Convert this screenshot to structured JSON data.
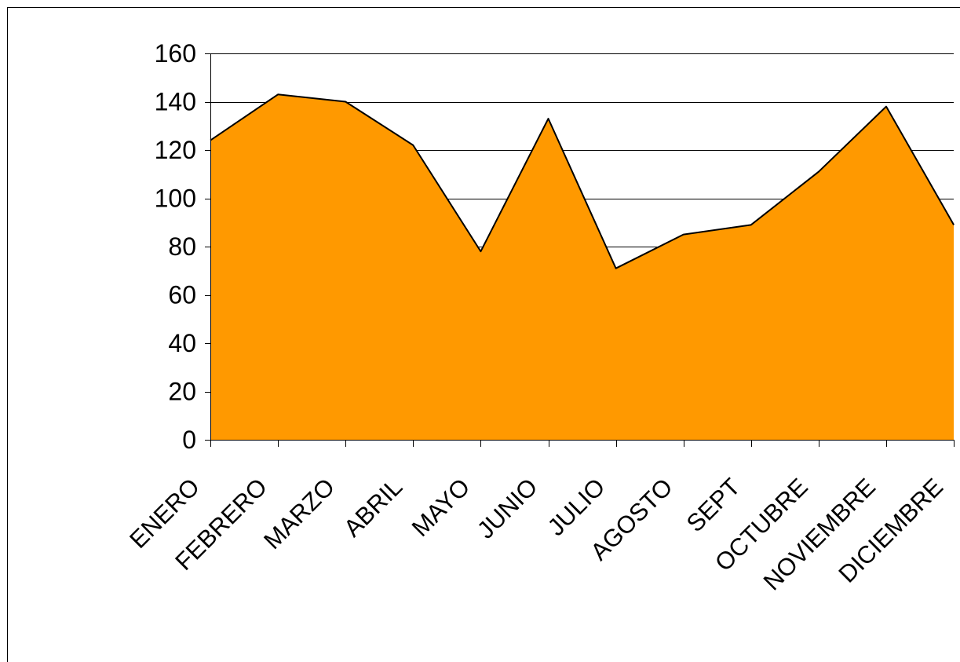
{
  "chart_data": {
    "type": "area",
    "title": "",
    "xlabel": "",
    "ylabel": "",
    "categories": [
      "ENERO",
      "FEBRERO",
      "MARZO",
      "ABRIL",
      "MAYO",
      "JUNIO",
      "JULIO",
      "AGOSTO",
      "SEPT",
      "OCTUBRE",
      "NOVIEMBRE",
      "DICIEMBRE"
    ],
    "series": [
      {
        "values": [
          124,
          143,
          140,
          122,
          78,
          133,
          71,
          85,
          89,
          111,
          138,
          89
        ],
        "color": "#ff9900"
      }
    ],
    "ylim": [
      0,
      160
    ],
    "yticks": [
      "0",
      "20",
      "40",
      "60",
      "80",
      "100",
      "120",
      "140",
      "160"
    ],
    "grid": true,
    "legend": "none"
  }
}
